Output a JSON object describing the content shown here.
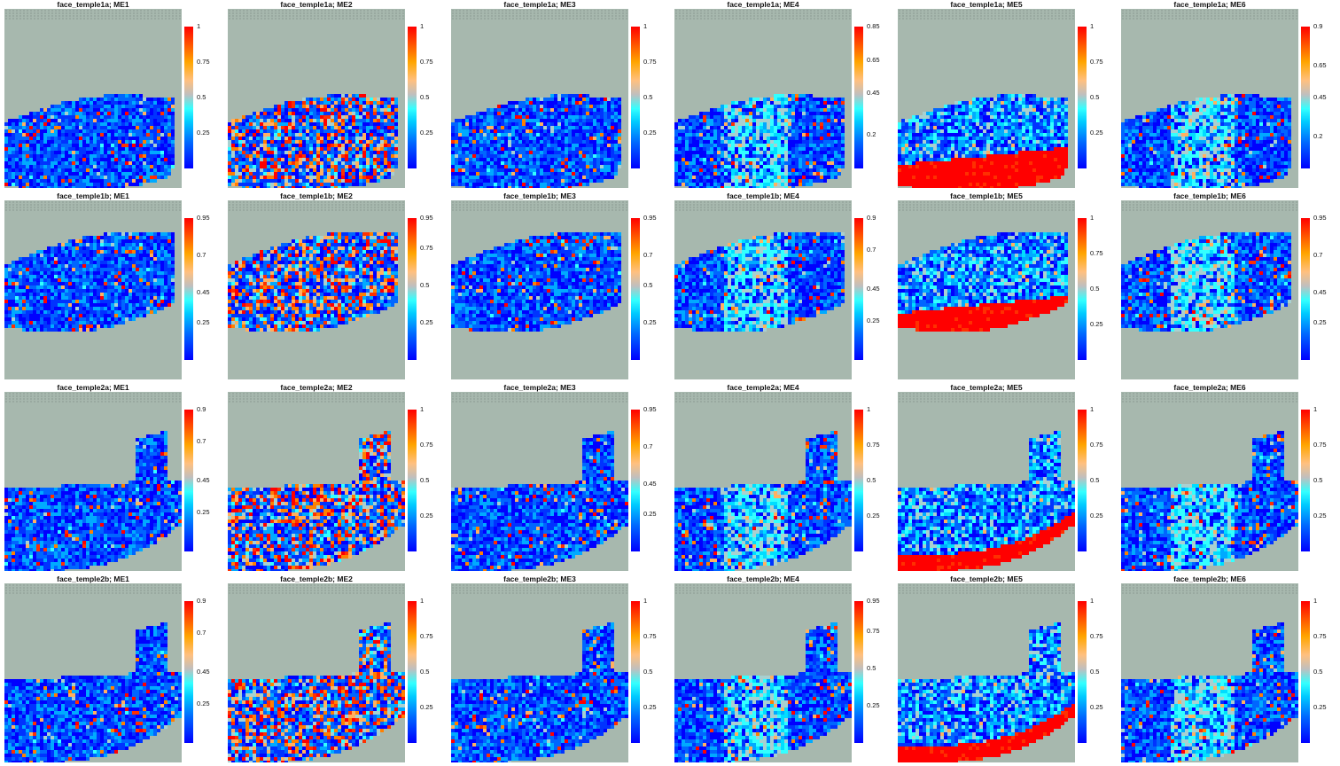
{
  "chart_data": {
    "type": "heatmap",
    "description_grid": "4 rows (samples) x 6 columns (modules) spatial score maps with colorbars",
    "samples": [
      "face_temple1a",
      "face_temple1b",
      "face_temple2a",
      "face_temple2b"
    ],
    "modules": [
      "ME1",
      "ME2",
      "ME3",
      "ME4",
      "ME5",
      "ME6"
    ],
    "colormap": [
      "#0000ff",
      "#00ccff",
      "#33ffff",
      "#bfbfbf",
      "#ffa500",
      "#ff0000"
    ],
    "background_color": "#a7b8ae",
    "panels": [
      {
        "title": "face_temple1a; ME1",
        "legend_max": 1,
        "ticks": [
          "1",
          "0.75",
          "0.5",
          "0.25"
        ],
        "tick_values": [
          1,
          0.75,
          0.5,
          0.25
        ]
      },
      {
        "title": "face_temple1a; ME2",
        "legend_max": 1,
        "ticks": [
          "1",
          "0.75",
          "0.5",
          "0.25"
        ],
        "tick_values": [
          1,
          0.75,
          0.5,
          0.25
        ]
      },
      {
        "title": "face_temple1a; ME3",
        "legend_max": 1,
        "ticks": [
          "1",
          "0.75",
          "0.5",
          "0.25"
        ],
        "tick_values": [
          1,
          0.75,
          0.5,
          0.25
        ]
      },
      {
        "title": "face_temple1a; ME4",
        "legend_max": 0.85,
        "ticks": [
          "0.85",
          "0.65",
          "0.45",
          "0.2"
        ],
        "tick_values": [
          0.85,
          0.65,
          0.45,
          0.2
        ]
      },
      {
        "title": "face_temple1a; ME5",
        "legend_max": 1,
        "ticks": [
          "1",
          "0.75",
          "0.5",
          "0.25"
        ],
        "tick_values": [
          1,
          0.75,
          0.5,
          0.25
        ]
      },
      {
        "title": "face_temple1a; ME6",
        "legend_max": 0.9,
        "ticks": [
          "0.9",
          "0.65",
          "0.45",
          "0.2"
        ],
        "tick_values": [
          0.9,
          0.65,
          0.45,
          0.2
        ]
      },
      {
        "title": "face_temple1b; ME1",
        "legend_max": 0.95,
        "ticks": [
          "0.95",
          "0.7",
          "0.45",
          "0.25"
        ],
        "tick_values": [
          0.95,
          0.7,
          0.45,
          0.25
        ]
      },
      {
        "title": "face_temple1b; ME2",
        "legend_max": 0.95,
        "ticks": [
          "0.95",
          "0.75",
          "0.5",
          "0.25"
        ],
        "tick_values": [
          0.95,
          0.75,
          0.5,
          0.25
        ]
      },
      {
        "title": "face_temple1b; ME3",
        "legend_max": 0.95,
        "ticks": [
          "0.95",
          "0.7",
          "0.5",
          "0.25"
        ],
        "tick_values": [
          0.95,
          0.7,
          0.5,
          0.25
        ]
      },
      {
        "title": "face_temple1b; ME4",
        "legend_max": 0.9,
        "ticks": [
          "0.9",
          "0.7",
          "0.45",
          "0.25"
        ],
        "tick_values": [
          0.9,
          0.7,
          0.45,
          0.25
        ]
      },
      {
        "title": "face_temple1b; ME5",
        "legend_max": 1,
        "ticks": [
          "1",
          "0.75",
          "0.5",
          "0.25"
        ],
        "tick_values": [
          1,
          0.75,
          0.5,
          0.25
        ]
      },
      {
        "title": "face_temple1b; ME6",
        "legend_max": 0.95,
        "ticks": [
          "0.95",
          "0.7",
          "0.45",
          "0.25"
        ],
        "tick_values": [
          0.95,
          0.7,
          0.45,
          0.25
        ]
      },
      {
        "title": "face_temple2a; ME1",
        "legend_max": 0.9,
        "ticks": [
          "0.9",
          "0.7",
          "0.45",
          "0.25"
        ],
        "tick_values": [
          0.9,
          0.7,
          0.45,
          0.25
        ]
      },
      {
        "title": "face_temple2a; ME2",
        "legend_max": 1,
        "ticks": [
          "1",
          "0.75",
          "0.5",
          "0.25"
        ],
        "tick_values": [
          1,
          0.75,
          0.5,
          0.25
        ]
      },
      {
        "title": "face_temple2a; ME3",
        "legend_max": 0.95,
        "ticks": [
          "0.95",
          "0.7",
          "0.45",
          "0.25"
        ],
        "tick_values": [
          0.95,
          0.7,
          0.45,
          0.25
        ]
      },
      {
        "title": "face_temple2a; ME4",
        "legend_max": 1,
        "ticks": [
          "1",
          "0.75",
          "0.5",
          "0.25"
        ],
        "tick_values": [
          1,
          0.75,
          0.5,
          0.25
        ]
      },
      {
        "title": "face_temple2a; ME5",
        "legend_max": 1,
        "ticks": [
          "1",
          "0.75",
          "0.5",
          "0.25"
        ],
        "tick_values": [
          1,
          0.75,
          0.5,
          0.25
        ]
      },
      {
        "title": "face_temple2a; ME6",
        "legend_max": 1,
        "ticks": [
          "1",
          "0.75",
          "0.5",
          "0.25"
        ],
        "tick_values": [
          1,
          0.75,
          0.5,
          0.25
        ]
      },
      {
        "title": "face_temple2b; ME1",
        "legend_max": 0.9,
        "ticks": [
          "0.9",
          "0.7",
          "0.45",
          "0.25"
        ],
        "tick_values": [
          0.9,
          0.7,
          0.45,
          0.25
        ]
      },
      {
        "title": "face_temple2b; ME2",
        "legend_max": 1,
        "ticks": [
          "1",
          "0.75",
          "0.5",
          "0.25"
        ],
        "tick_values": [
          1,
          0.75,
          0.5,
          0.25
        ]
      },
      {
        "title": "face_temple2b; ME3",
        "legend_max": 1,
        "ticks": [
          "1",
          "0.75",
          "0.5",
          "0.25"
        ],
        "tick_values": [
          1,
          0.75,
          0.5,
          0.25
        ]
      },
      {
        "title": "face_temple2b; ME4",
        "legend_max": 0.95,
        "ticks": [
          "0.95",
          "0.75",
          "0.5",
          "0.25"
        ],
        "tick_values": [
          0.95,
          0.75,
          0.5,
          0.25
        ]
      },
      {
        "title": "face_temple2b; ME5",
        "legend_max": 1,
        "ticks": [
          "1",
          "0.75",
          "0.5",
          "0.25"
        ],
        "tick_values": [
          1,
          0.75,
          0.5,
          0.25
        ]
      },
      {
        "title": "face_temple2b; ME6",
        "legend_max": 1,
        "ticks": [
          "1",
          "0.75",
          "0.5",
          "0.25"
        ],
        "tick_values": [
          1,
          0.75,
          0.5,
          0.25
        ]
      }
    ]
  }
}
